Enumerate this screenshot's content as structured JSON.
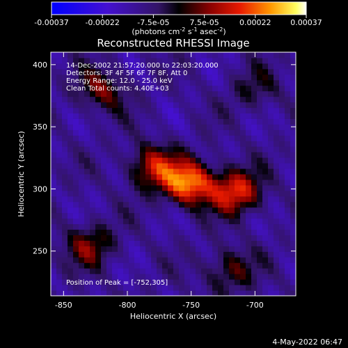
{
  "colorbar": {
    "tick_labels": [
      "-0.00037",
      "-0.00022",
      "-7.5e-05",
      "7.5e-05",
      "0.00022",
      "0.00037"
    ],
    "unit": "(photons cm",
    "unit_exp1": "-2",
    "unit_mid": " s",
    "unit_exp2": "-1",
    "unit_mid2": " asec",
    "unit_exp3": "-2",
    "unit_end": ")"
  },
  "chart_data": {
    "type": "heatmap",
    "title": "Reconstructed RHESSI Image",
    "xlabel": "Heliocentric X (arcsec)",
    "ylabel": "Heliocentric Y (arcsec)",
    "xlim": [
      -860,
      -668
    ],
    "ylim": [
      214,
      410
    ],
    "x_ticks": [
      -850,
      -800,
      -750,
      -700
    ],
    "x_tick_labels": [
      "-850",
      "-800",
      "-750",
      "-700"
    ],
    "y_ticks": [
      250,
      300,
      350,
      400
    ],
    "y_tick_labels": [
      "250",
      "300",
      "350",
      "400"
    ],
    "zlim": [
      -0.00037,
      0.00037
    ],
    "colormap": "blue-purple-black-red-orange-yellow-white",
    "info_lines": [
      "14-Dec-2002 21:57:20.000 to 22:03:20.000",
      "Detectors: 3F 4F 5F 6F 7F 8F, Att 0",
      "Energy Range: 12.0 - 25.0 keV",
      "Clean    Total counts: 4.40E+03"
    ],
    "peak_label": "Position of Peak = [-752,305]",
    "peak": [
      -752,
      305
    ],
    "sources": [
      {
        "x": -752,
        "y": 305,
        "amplitude": 0.00037
      },
      {
        "x": -715,
        "y": 298,
        "amplitude": 0.0003
      },
      {
        "x": -780,
        "y": 318,
        "amplitude": 0.00024
      },
      {
        "x": -820,
        "y": 380,
        "amplitude": 0.00018
      },
      {
        "x": -830,
        "y": 255,
        "amplitude": 0.00018
      },
      {
        "x": -720,
        "y": 235,
        "amplitude": 0.00016
      },
      {
        "x": -700,
        "y": 380,
        "amplitude": 0.0001
      }
    ]
  },
  "footer_timestamp": "4-May-2022 06:47"
}
